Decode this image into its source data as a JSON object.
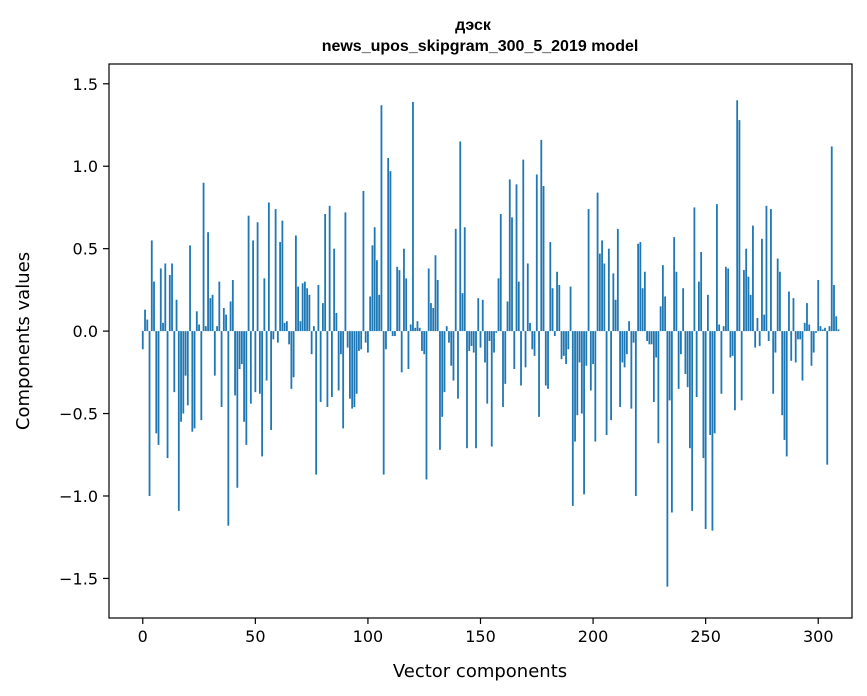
{
  "chart_data": {
    "type": "bar",
    "title": "дэск",
    "subtitle": "news_upos_skipgram_300_5_2019 model",
    "xlabel": "Vector components",
    "ylabel": "Components values",
    "xlim": [
      -15,
      315
    ],
    "ylim": [
      -1.74,
      1.62
    ],
    "xticks": [
      0,
      50,
      100,
      150,
      200,
      250,
      300
    ],
    "yticks": [
      -1.5,
      -1.0,
      -0.5,
      0.0,
      0.5,
      1.0,
      1.5
    ],
    "ytick_labels": [
      "−1.5",
      "−1.0",
      "−0.5",
      "0.0",
      "0.5",
      "1.0",
      "1.5"
    ],
    "bar_color": "#1f77b4",
    "grid": false,
    "legend": "none",
    "values": [
      -0.11,
      0.13,
      0.07,
      -1.0,
      0.55,
      0.3,
      -0.62,
      -0.69,
      0.38,
      0.05,
      0.41,
      -0.77,
      0.34,
      0.41,
      -0.37,
      0.19,
      -1.09,
      -0.55,
      -0.5,
      -0.27,
      -0.45,
      0.52,
      -0.61,
      -0.59,
      0.12,
      0.04,
      -0.54,
      0.9,
      0.03,
      0.6,
      0.2,
      0.22,
      -0.27,
      0.03,
      0.3,
      -0.46,
      0.14,
      0.1,
      -1.18,
      0.18,
      0.31,
      -0.39,
      -0.95,
      -0.23,
      -0.2,
      -0.55,
      -0.69,
      0.7,
      -0.44,
      0.55,
      -0.37,
      0.66,
      -0.38,
      -0.76,
      0.32,
      -0.3,
      0.78,
      -0.6,
      -0.05,
      0.74,
      -0.07,
      0.54,
      0.67,
      0.05,
      0.06,
      -0.08,
      -0.35,
      -0.28,
      0.58,
      0.27,
      0.06,
      0.29,
      0.3,
      0.26,
      0.22,
      -0.14,
      0.03,
      -0.87,
      0.28,
      -0.43,
      0.17,
      0.71,
      -0.46,
      0.76,
      -0.4,
      0.5,
      0.11,
      -0.36,
      -0.14,
      -0.59,
      0.72,
      -0.1,
      -0.41,
      -0.47,
      -0.46,
      -0.38,
      -0.12,
      -0.11,
      0.85,
      -0.07,
      -0.13,
      0.21,
      0.52,
      0.63,
      0.43,
      0.22,
      1.37,
      -0.87,
      -0.11,
      1.05,
      0.97,
      -0.03,
      -0.03,
      0.39,
      0.37,
      -0.25,
      0.5,
      0.32,
      -0.23,
      0.04,
      1.39,
      0.02,
      0.06,
      0.02,
      -0.12,
      -0.14,
      -0.9,
      0.38,
      0.17,
      0.14,
      0.46,
      0.31,
      -0.72,
      -0.52,
      -0.37,
      0.03,
      -0.07,
      -0.21,
      -0.3,
      0.62,
      -0.41,
      1.15,
      0.23,
      0.63,
      -0.71,
      -0.12,
      -0.09,
      -0.13,
      -0.71,
      0.2,
      -0.1,
      0.19,
      -0.19,
      -0.44,
      -0.06,
      -0.7,
      -0.13,
      -0.01,
      0.32,
      0.71,
      -0.46,
      -0.32,
      0.18,
      0.92,
      0.69,
      -0.23,
      0.89,
      0.3,
      -0.33,
      1.04,
      -0.22,
      0.41,
      0.05,
      -0.11,
      -0.15,
      0.95,
      -0.52,
      1.16,
      0.88,
      -0.33,
      -0.35,
      0.54,
      0.26,
      -0.03,
      0.36,
      0.28,
      -0.17,
      -0.15,
      -0.2,
      -0.11,
      0.27,
      -1.06,
      -0.67,
      -0.51,
      -0.19,
      -0.5,
      -0.99,
      -0.21,
      0.74,
      -0.36,
      -0.2,
      -0.67,
      0.84,
      0.47,
      0.55,
      0.41,
      -0.63,
      0.5,
      -0.54,
      0.35,
      0.19,
      0.62,
      -0.46,
      -0.19,
      -0.22,
      -0.14,
      0.06,
      -0.47,
      -0.07,
      -1.0,
      0.53,
      0.54,
      0.26,
      0.36,
      -0.06,
      -0.08,
      -0.08,
      -0.43,
      -0.16,
      -0.68,
      0.15,
      0.4,
      0.21,
      -1.55,
      -0.42,
      -1.1,
      0.57,
      0.36,
      -0.35,
      -0.14,
      0.26,
      -0.26,
      -0.34,
      -0.71,
      -1.09,
      0.75,
      -0.4,
      0.3,
      0.48,
      -0.77,
      -1.2,
      0.22,
      -0.63,
      -1.21,
      -0.62,
      0.77,
      0.04,
      -0.38,
      0.03,
      0.39,
      0.38,
      -0.16,
      -0.15,
      -0.48,
      1.4,
      1.28,
      -0.42,
      0.37,
      0.5,
      0.33,
      0.22,
      0.64,
      -0.1,
      0.08,
      -0.09,
      0.56,
      0.1,
      0.76,
      -0.06,
      0.74,
      -0.38,
      -0.13,
      0.44,
      0.36,
      -0.51,
      -0.66,
      -0.76,
      0.24,
      -0.18,
      0.2,
      -0.19,
      -0.05,
      -0.05,
      -0.3,
      0.05,
      0.17,
      0.04,
      -0.21,
      -0.13,
      -0.01,
      0.31,
      0.03,
      0.01,
      0.02,
      -0.81,
      0.03,
      1.12,
      0.28,
      0.09,
      0.01
    ]
  }
}
